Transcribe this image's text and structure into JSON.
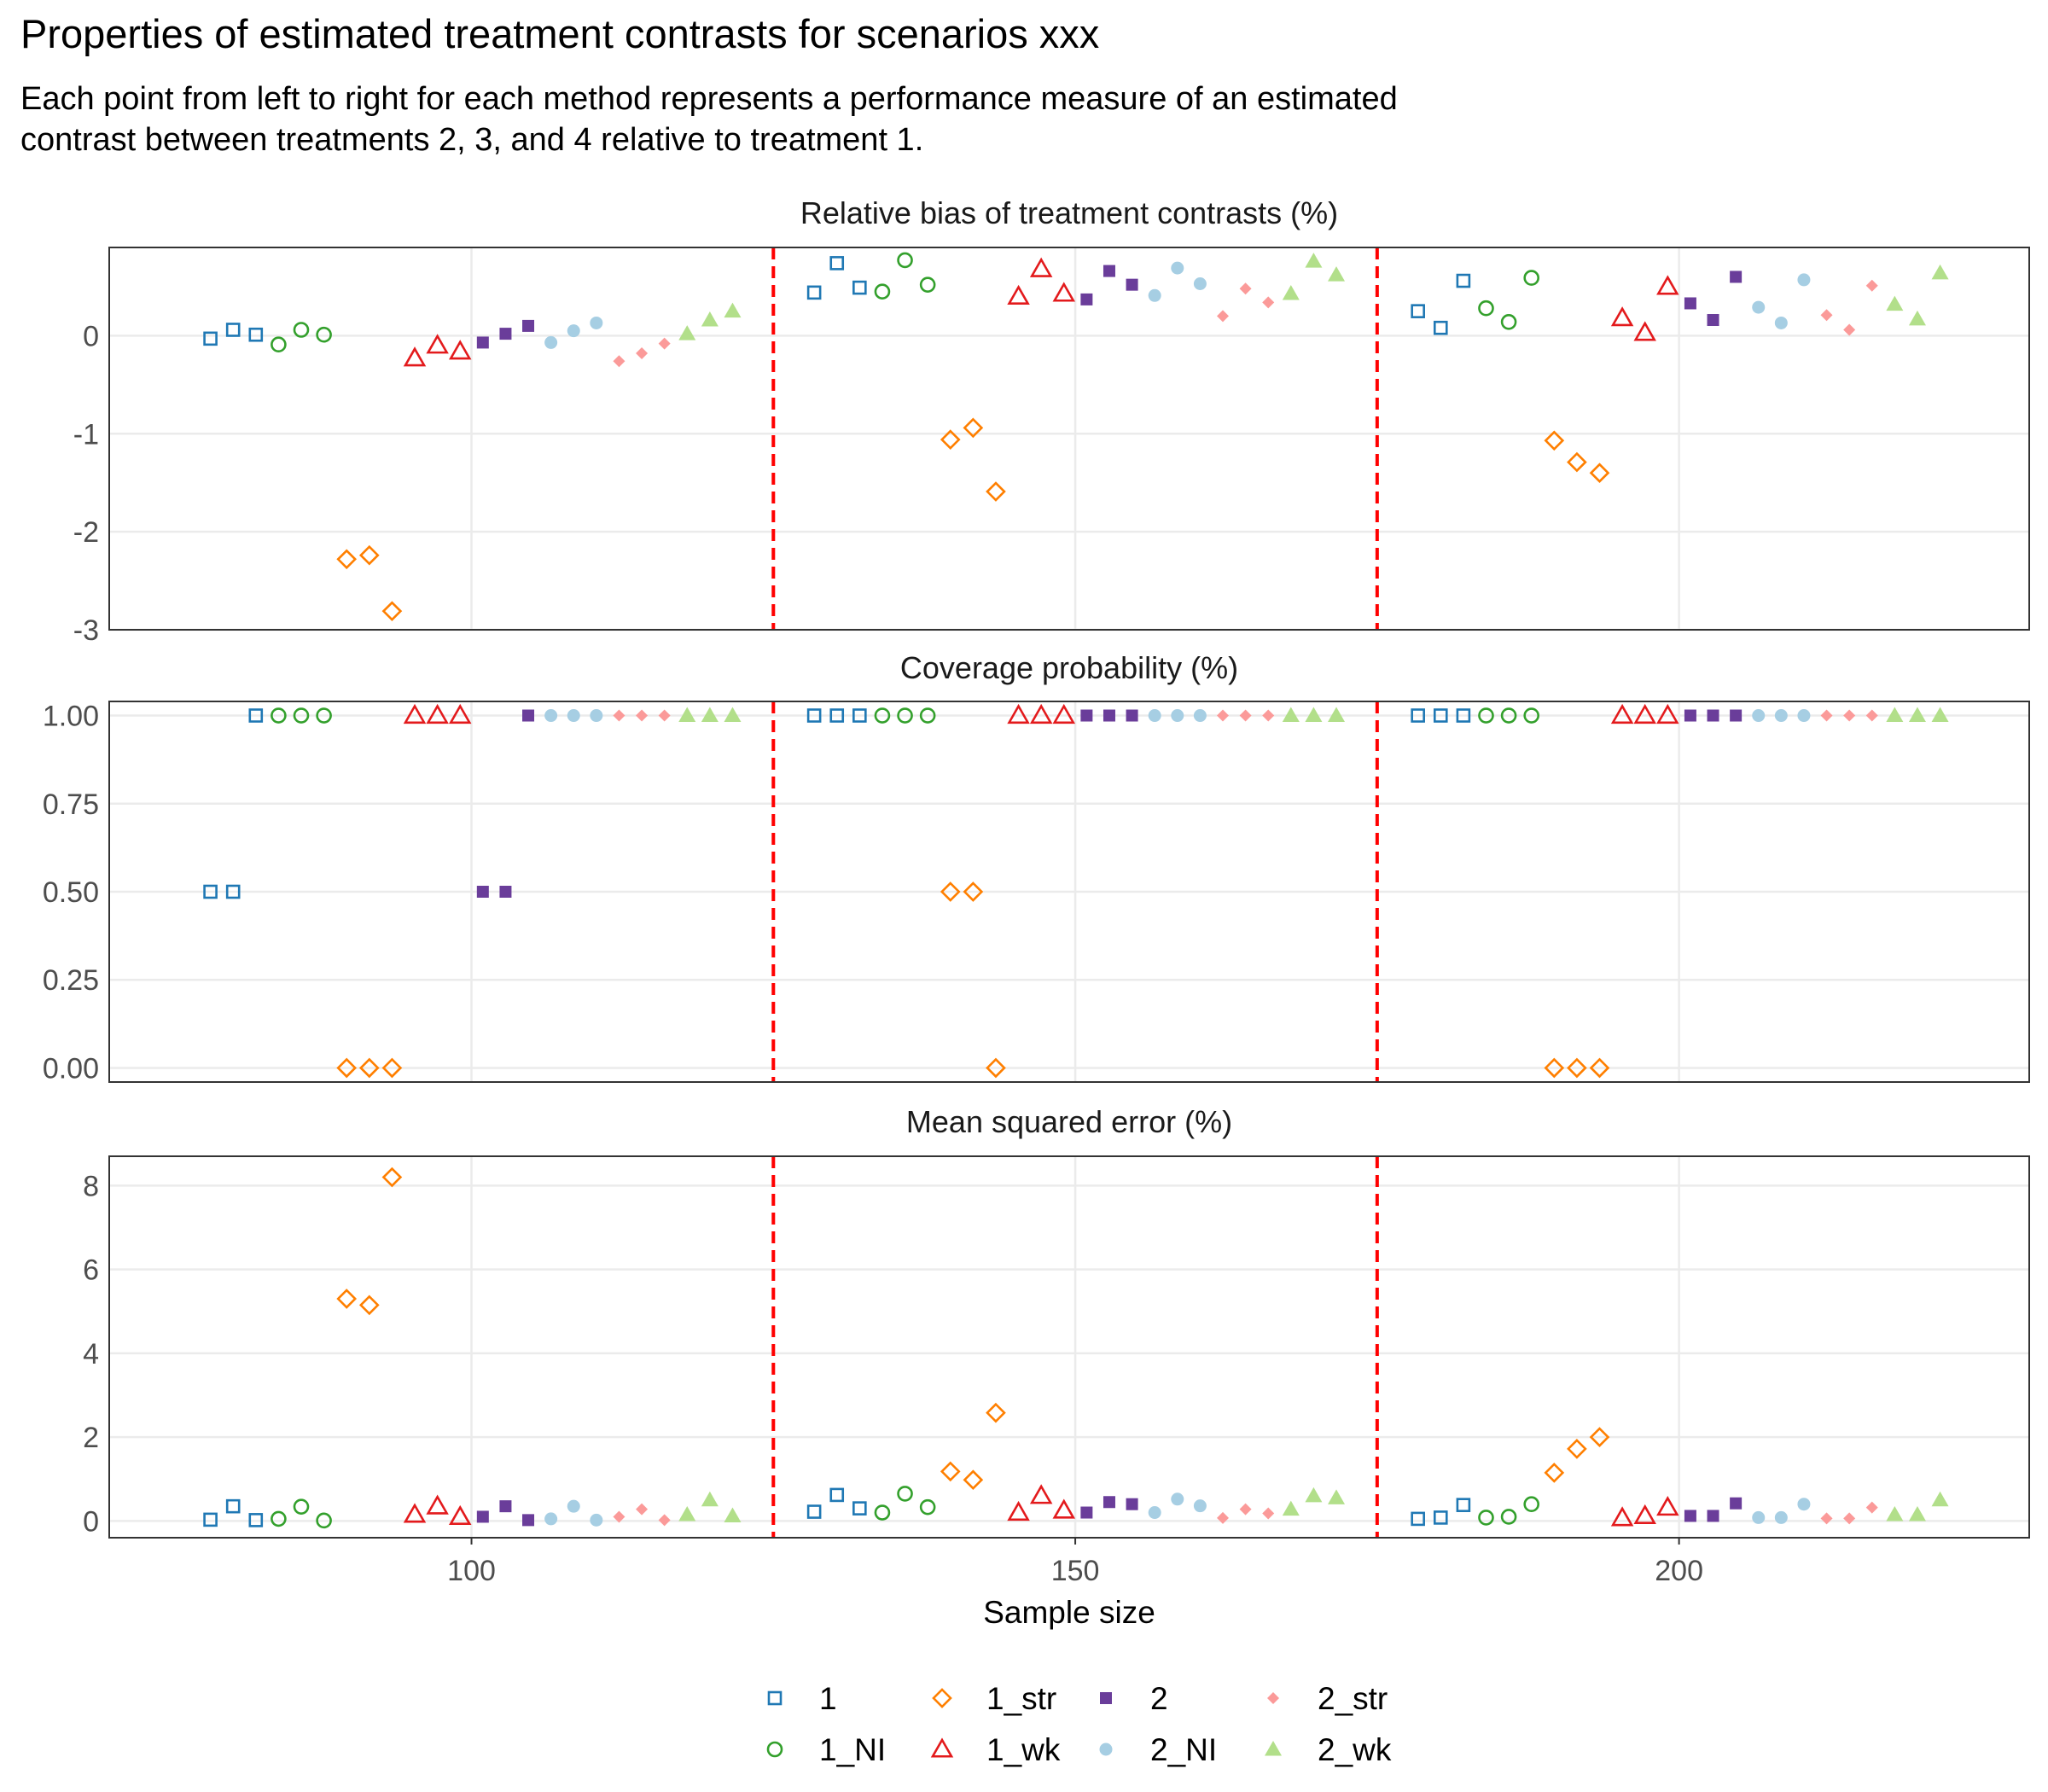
{
  "title": "Properties of estimated treatment contrasts for scenarios xxx",
  "subtitle_lines": [
    "Each point from left to right for each method represents a performance measure of an estimated",
    "contrast between treatments 2, 3, and 4 relative to treatment 1."
  ],
  "colors": {
    "1": "#1f78b4",
    "1_NI": "#33a02c",
    "1_str": "#ff7f00",
    "1_wk": "#e31a1c",
    "2": "#6a3d9a",
    "2_NI": "#a6cee3",
    "2_str": "#fb9a99",
    "2_wk": "#b2df8a",
    "reference_line": "#ff0000"
  },
  "chart_data": {
    "type": "scatter",
    "xlabel": "Sample size",
    "x_ticks": [
      100,
      150,
      200
    ],
    "x_range": [
      70,
      229
    ],
    "sample_sizes": [
      100,
      150,
      200
    ],
    "reference_lines_x": [
      125,
      175
    ],
    "methods": [
      "1",
      "1_NI",
      "1_str",
      "1_wk",
      "2",
      "2_NI",
      "2_str",
      "2_wk"
    ],
    "method_shapes": {
      "1": "open-square",
      "1_NI": "open-circle",
      "1_str": "open-diamond",
      "1_wk": "open-triangle",
      "2": "filled-square",
      "2_NI": "filled-circle",
      "2_str": "filled-diamond",
      "2_wk": "filled-triangle"
    },
    "contrasts": [
      "2 vs 1",
      "3 vs 1",
      "4 vs 1"
    ],
    "legend": {
      "position": "bottom",
      "columns": [
        [
          "1",
          "1_NI"
        ],
        [
          "1_str",
          "1_wk"
        ],
        [
          "2",
          "2_NI"
        ],
        [
          "2_str",
          "2_wk"
        ]
      ]
    },
    "panels": [
      {
        "title": "Relative bias of treatment contrasts (%)",
        "ylim": [
          -3,
          0.9
        ],
        "y_ticks": [
          0,
          -1,
          -2,
          -3
        ],
        "y_tick_labels": [
          "0",
          "-1",
          "-2",
          "-3"
        ],
        "values": {
          "100": {
            "1": [
              -0.03,
              0.06,
              0.01
            ],
            "1_NI": [
              -0.09,
              0.06,
              0.01
            ],
            "1_str": [
              -2.28,
              -2.24,
              -2.81
            ],
            "1_wk": [
              -0.23,
              -0.1,
              -0.16
            ],
            "2": [
              -0.07,
              0.02,
              0.1
            ],
            "2_NI": [
              -0.07,
              0.05,
              0.13
            ],
            "2_str": [
              -0.26,
              -0.18,
              -0.08
            ],
            "2_wk": [
              0.02,
              0.16,
              0.25
            ]
          },
          "150": {
            "1": [
              0.44,
              0.74,
              0.49
            ],
            "1_NI": [
              0.45,
              0.77,
              0.52
            ],
            "1_str": [
              -1.06,
              -0.94,
              -1.59
            ],
            "1_wk": [
              0.4,
              0.68,
              0.43
            ],
            "2": [
              0.37,
              0.66,
              0.52
            ],
            "2_NI": [
              0.41,
              0.69,
              0.53
            ],
            "2_str": [
              0.2,
              0.48,
              0.34
            ],
            "2_wk": [
              0.43,
              0.76,
              0.62
            ]
          },
          "200": {
            "1": [
              0.25,
              0.08,
              0.56
            ],
            "1_NI": [
              0.28,
              0.14,
              0.59
            ],
            "1_str": [
              -1.07,
              -1.29,
              -1.4
            ],
            "1_wk": [
              0.18,
              0.03,
              0.5
            ],
            "2": [
              0.33,
              0.16,
              0.6
            ],
            "2_NI": [
              0.29,
              0.13,
              0.57
            ],
            "2_str": [
              0.21,
              0.06,
              0.51
            ],
            "2_wk": [
              0.32,
              0.17,
              0.64
            ]
          }
        }
      },
      {
        "title": "Coverage probability (%)",
        "ylim": [
          -0.04,
          1.04
        ],
        "y_ticks": [
          1,
          0.75,
          0.5,
          0.25,
          0
        ],
        "y_tick_labels": [
          "1.00",
          "0.75",
          "0.50",
          "0.25",
          "0.00"
        ],
        "values": {
          "100": {
            "1": [
              0.5,
              0.5,
              1
            ],
            "1_NI": [
              1,
              1,
              1
            ],
            "1_str": [
              0,
              0,
              0
            ],
            "1_wk": [
              1,
              1,
              1
            ],
            "2": [
              0.5,
              0.5,
              1
            ],
            "2_NI": [
              1,
              1,
              1
            ],
            "2_str": [
              1,
              1,
              1
            ],
            "2_wk": [
              1,
              1,
              1
            ]
          },
          "150": {
            "1": [
              1,
              1,
              1
            ],
            "1_NI": [
              1,
              1,
              1
            ],
            "1_str": [
              0.5,
              0.5,
              0
            ],
            "1_wk": [
              1,
              1,
              1
            ],
            "2": [
              1,
              1,
              1
            ],
            "2_NI": [
              1,
              1,
              1
            ],
            "2_str": [
              1,
              1,
              1
            ],
            "2_wk": [
              1,
              1,
              1
            ]
          },
          "200": {
            "1": [
              1,
              1,
              1
            ],
            "1_NI": [
              1,
              1,
              1
            ],
            "1_str": [
              0,
              0,
              0
            ],
            "1_wk": [
              1,
              1,
              1
            ],
            "2": [
              1,
              1,
              1
            ],
            "2_NI": [
              1,
              1,
              1
            ],
            "2_str": [
              1,
              1,
              1
            ],
            "2_wk": [
              1,
              1,
              1
            ]
          }
        }
      },
      {
        "title": "Mean squared error (%)",
        "ylim": [
          -0.4,
          8.7
        ],
        "y_ticks": [
          8,
          6,
          4,
          2,
          0
        ],
        "y_tick_labels": [
          "8",
          "6",
          "4",
          "2",
          "0"
        ],
        "values": {
          "100": {
            "1": [
              0.03,
              0.35,
              0.02
            ],
            "1_NI": [
              0.05,
              0.34,
              0.01
            ],
            "1_str": [
              5.3,
              5.15,
              8.2
            ],
            "1_wk": [
              0.15,
              0.35,
              0.1
            ],
            "2": [
              0.1,
              0.35,
              0.02
            ],
            "2_NI": [
              0.05,
              0.35,
              0.02
            ],
            "2_str": [
              0.1,
              0.28,
              0.02
            ],
            "2_wk": [
              0.15,
              0.5,
              0.12
            ]
          },
          "150": {
            "1": [
              0.22,
              0.62,
              0.3
            ],
            "1_NI": [
              0.2,
              0.65,
              0.33
            ],
            "1_str": [
              1.18,
              0.98,
              2.58
            ],
            "1_wk": [
              0.2,
              0.6,
              0.25
            ],
            "2": [
              0.2,
              0.45,
              0.4
            ],
            "2_NI": [
              0.2,
              0.52,
              0.36
            ],
            "2_str": [
              0.07,
              0.28,
              0.18
            ],
            "2_wk": [
              0.28,
              0.6,
              0.55
            ]
          },
          "200": {
            "1": [
              0.05,
              0.08,
              0.38
            ],
            "1_NI": [
              0.08,
              0.1,
              0.4
            ],
            "1_str": [
              1.15,
              1.72,
              2.0
            ],
            "1_wk": [
              0.07,
              0.12,
              0.32
            ],
            "2": [
              0.12,
              0.12,
              0.42
            ],
            "2_NI": [
              0.08,
              0.08,
              0.4
            ],
            "2_str": [
              0.06,
              0.06,
              0.32
            ],
            "2_wk": [
              0.15,
              0.15,
              0.5
            ]
          }
        }
      }
    ]
  }
}
